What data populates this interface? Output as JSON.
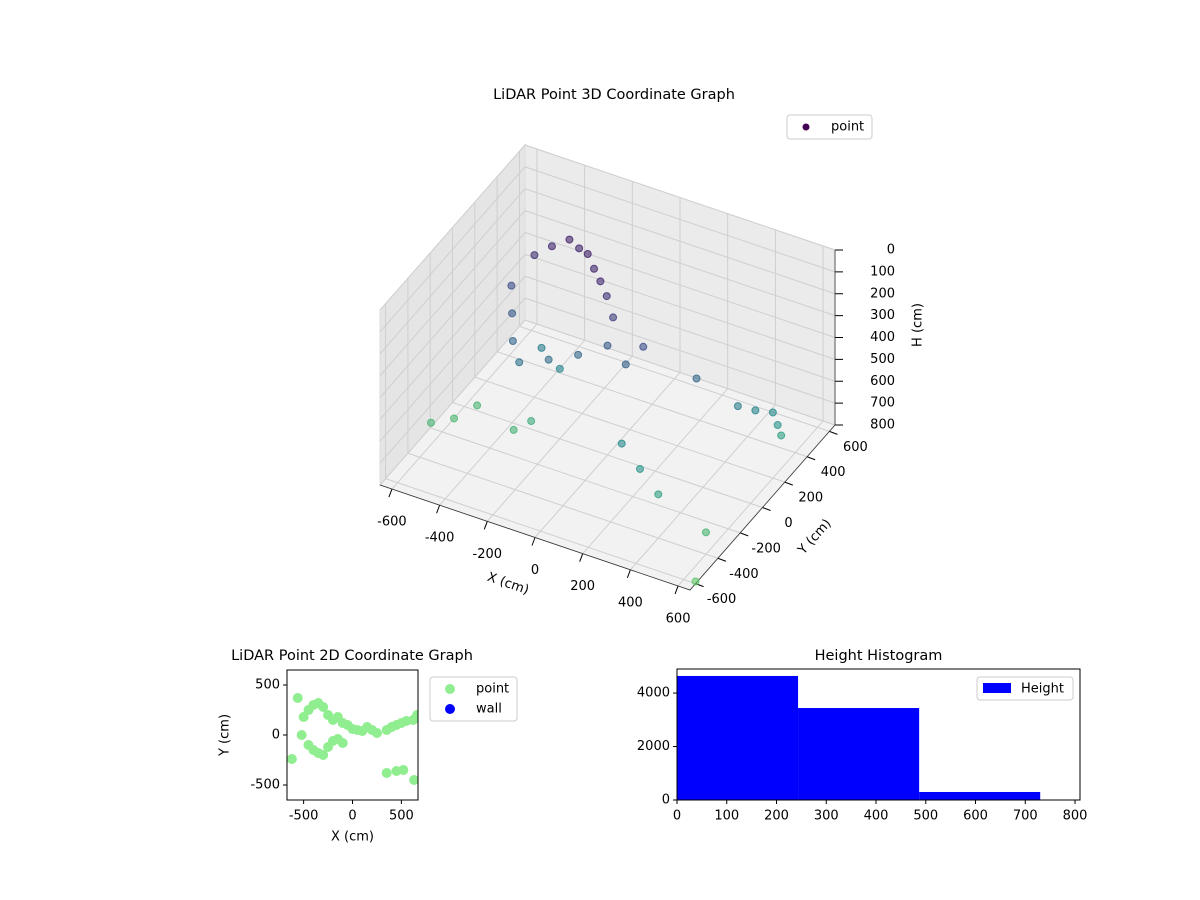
{
  "chart_data": [
    {
      "type": "scatter3d",
      "title": "LiDAR Point 3D Coordinate Graph",
      "xlabel": "X (cm)",
      "ylabel": "Y (cm)",
      "zlabel": "H (cm)",
      "xlim": [
        -650,
        650
      ],
      "ylim": [
        -650,
        650
      ],
      "zlim": [
        800,
        0
      ],
      "xticks": [
        -600,
        -400,
        -200,
        0,
        200,
        400,
        600
      ],
      "yticks": [
        -600,
        -400,
        -200,
        0,
        200,
        400,
        600
      ],
      "zticks": [
        0,
        100,
        200,
        300,
        400,
        500,
        600,
        700,
        800
      ],
      "grid": true,
      "legend": "upper right",
      "colormap": [
        "#440154",
        "#3b528b",
        "#21918c",
        "#5ec962"
      ],
      "series": [
        {
          "name": "point",
          "color": "#440154",
          "x": [
            -400,
            -350,
            -300,
            -250,
            -200,
            -150,
            -100,
            -50,
            0,
            -400,
            -350,
            -300,
            -200,
            -100,
            0,
            100,
            150,
            -450,
            -300,
            -200,
            -600,
            -550,
            -500,
            -300,
            -250,
            500,
            550,
            600,
            620,
            630,
            350,
            200,
            300,
            400,
            600,
            650
          ],
          "y": [
            200,
            250,
            300,
            280,
            250,
            200,
            150,
            100,
            50,
            0,
            -100,
            -150,
            -100,
            -50,
            0,
            -50,
            0,
            100,
            50,
            0,
            -300,
            -200,
            -100,
            -200,
            -150,
            100,
            150,
            200,
            200,
            210,
            50,
            -300,
            -350,
            -400,
            -400,
            -600
          ],
          "z": [
            150,
            120,
            100,
            110,
            100,
            120,
            130,
            150,
            200,
            300,
            350,
            400,
            380,
            350,
            300,
            320,
            250,
            250,
            450,
            480,
            700,
            720,
            700,
            680,
            650,
            450,
            480,
            500,
            550,
            600,
            350,
            500,
            550,
            600,
            700,
            790
          ]
        }
      ]
    },
    {
      "type": "scatter",
      "title": "LiDAR Point 2D Coordinate Graph",
      "xlabel": "X (cm)",
      "ylabel": "Y (cm)",
      "xlim": [
        -670,
        670
      ],
      "ylim": [
        -650,
        650
      ],
      "xticks": [
        -500,
        0,
        500
      ],
      "yticks": [
        -500,
        0,
        500
      ],
      "legend": "outside right",
      "series": [
        {
          "name": "point",
          "color": "#90ee90",
          "x": [
            -620,
            -560,
            -500,
            -450,
            -400,
            -350,
            -300,
            -250,
            -200,
            -150,
            -100,
            -50,
            0,
            50,
            100,
            150,
            200,
            250,
            -520,
            -450,
            -400,
            -350,
            -300,
            -250,
            -200,
            -150,
            -100,
            350,
            400,
            450,
            500,
            550,
            620,
            660,
            350,
            450,
            520,
            630
          ],
          "y": [
            -240,
            370,
            180,
            250,
            300,
            320,
            280,
            200,
            150,
            180,
            120,
            100,
            60,
            50,
            40,
            80,
            50,
            20,
            0,
            -100,
            -150,
            -180,
            -200,
            -120,
            -60,
            -40,
            -80,
            50,
            80,
            100,
            120,
            140,
            150,
            200,
            -380,
            -360,
            -350,
            -450
          ]
        },
        {
          "name": "wall",
          "color": "#0000ff",
          "x": [],
          "y": []
        }
      ]
    },
    {
      "type": "histogram",
      "title": "Height Histogram",
      "xlim": [
        0,
        810
      ],
      "ylim": [
        0,
        4900
      ],
      "xticks": [
        0,
        100,
        200,
        300,
        400,
        500,
        600,
        700,
        800
      ],
      "yticks": [
        0,
        2000,
        4000
      ],
      "legend": "upper right",
      "bins": [
        0,
        243.3,
        486.7,
        730
      ],
      "series": [
        {
          "name": "Height",
          "color": "#0000ff",
          "values": [
            4640,
            3440,
            300
          ]
        }
      ]
    }
  ]
}
